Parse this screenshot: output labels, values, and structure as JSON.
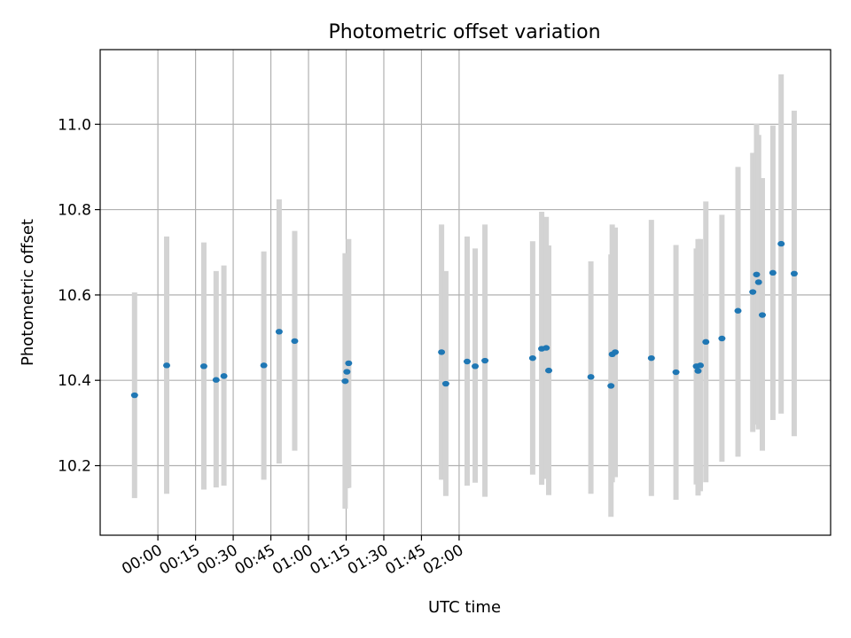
{
  "chart_data": {
    "type": "scatter",
    "title": "Photometric offset variation",
    "xlabel": "UTC time",
    "ylabel": "Photometric offset",
    "x_unit": "minutes after 00:00 UTC",
    "xlim": [
      -23,
      268
    ],
    "ylim": [
      10.037,
      11.175
    ],
    "xticks": [
      {
        "value": 0,
        "label": "00:00"
      },
      {
        "value": 15,
        "label": "00:15"
      },
      {
        "value": 30,
        "label": "00:30"
      },
      {
        "value": 45,
        "label": "00:45"
      },
      {
        "value": 60,
        "label": "01:00"
      },
      {
        "value": 75,
        "label": "01:15"
      },
      {
        "value": 90,
        "label": "01:30"
      },
      {
        "value": 105,
        "label": "01:45"
      },
      {
        "value": 120,
        "label": "02:00"
      }
    ],
    "yticks": [
      {
        "value": 10.2,
        "label": "10.2"
      },
      {
        "value": 10.4,
        "label": "10.4"
      },
      {
        "value": 10.6,
        "label": "10.6"
      },
      {
        "value": 10.8,
        "label": "10.8"
      },
      {
        "value": 11.0,
        "label": "11.0"
      }
    ],
    "grid": true,
    "colors": {
      "points": "#1f77b4",
      "error_bars": "#d3d3d3"
    },
    "points": [
      {
        "x": -9.3,
        "y": 10.365,
        "low": 10.124,
        "high": 10.606
      },
      {
        "x": 3.5,
        "y": 10.435,
        "low": 10.134,
        "high": 10.737
      },
      {
        "x": 18.3,
        "y": 10.433,
        "low": 10.144,
        "high": 10.723
      },
      {
        "x": 23.2,
        "y": 10.401,
        "low": 10.149,
        "high": 10.656
      },
      {
        "x": 26.3,
        "y": 10.41,
        "low": 10.153,
        "high": 10.669
      },
      {
        "x": 42.2,
        "y": 10.435,
        "low": 10.167,
        "high": 10.702
      },
      {
        "x": 48.3,
        "y": 10.514,
        "low": 10.205,
        "high": 10.824
      },
      {
        "x": 54.5,
        "y": 10.492,
        "low": 10.235,
        "high": 10.75
      },
      {
        "x": 74.6,
        "y": 10.398,
        "low": 10.099,
        "high": 10.698
      },
      {
        "x": 75.3,
        "y": 10.42,
        "low": 10.147,
        "high": 10.693
      },
      {
        "x": 76.0,
        "y": 10.44,
        "low": 10.148,
        "high": 10.731
      },
      {
        "x": 113.0,
        "y": 10.466,
        "low": 10.167,
        "high": 10.765
      },
      {
        "x": 114.7,
        "y": 10.392,
        "low": 10.129,
        "high": 10.656
      },
      {
        "x": 123.2,
        "y": 10.444,
        "low": 10.153,
        "high": 10.737
      },
      {
        "x": 126.4,
        "y": 10.433,
        "low": 10.16,
        "high": 10.709
      },
      {
        "x": 130.3,
        "y": 10.446,
        "low": 10.127,
        "high": 10.765
      },
      {
        "x": 149.3,
        "y": 10.452,
        "low": 10.179,
        "high": 10.726
      },
      {
        "x": 152.9,
        "y": 10.474,
        "low": 10.155,
        "high": 10.795
      },
      {
        "x": 154.7,
        "y": 10.476,
        "low": 10.169,
        "high": 10.783
      },
      {
        "x": 155.7,
        "y": 10.423,
        "low": 10.131,
        "high": 10.716
      },
      {
        "x": 172.5,
        "y": 10.408,
        "low": 10.134,
        "high": 10.679
      },
      {
        "x": 180.5,
        "y": 10.387,
        "low": 10.08,
        "high": 10.695
      },
      {
        "x": 181.0,
        "y": 10.461,
        "low": 10.161,
        "high": 10.765
      },
      {
        "x": 182.2,
        "y": 10.466,
        "low": 10.173,
        "high": 10.758
      },
      {
        "x": 196.6,
        "y": 10.452,
        "low": 10.129,
        "high": 10.776
      },
      {
        "x": 206.4,
        "y": 10.419,
        "low": 10.12,
        "high": 10.717
      },
      {
        "x": 214.5,
        "y": 10.433,
        "low": 10.156,
        "high": 10.709
      },
      {
        "x": 215.2,
        "y": 10.422,
        "low": 10.13,
        "high": 10.731
      },
      {
        "x": 216.1,
        "y": 10.435,
        "low": 10.14,
        "high": 10.731
      },
      {
        "x": 218.3,
        "y": 10.49,
        "low": 10.161,
        "high": 10.819
      },
      {
        "x": 224.7,
        "y": 10.498,
        "low": 10.209,
        "high": 10.788
      },
      {
        "x": 231.1,
        "y": 10.563,
        "low": 10.221,
        "high": 10.9
      },
      {
        "x": 237.0,
        "y": 10.607,
        "low": 10.279,
        "high": 10.933
      },
      {
        "x": 238.5,
        "y": 10.648,
        "low": 10.296,
        "high": 11.001
      },
      {
        "x": 239.3,
        "y": 10.63,
        "low": 10.285,
        "high": 10.975
      },
      {
        "x": 240.8,
        "y": 10.553,
        "low": 10.235,
        "high": 10.874
      },
      {
        "x": 245.0,
        "y": 10.652,
        "low": 10.307,
        "high": 10.997
      },
      {
        "x": 248.3,
        "y": 10.72,
        "low": 10.322,
        "high": 11.117
      },
      {
        "x": 253.5,
        "y": 10.65,
        "low": 10.269,
        "high": 11.032
      }
    ]
  }
}
